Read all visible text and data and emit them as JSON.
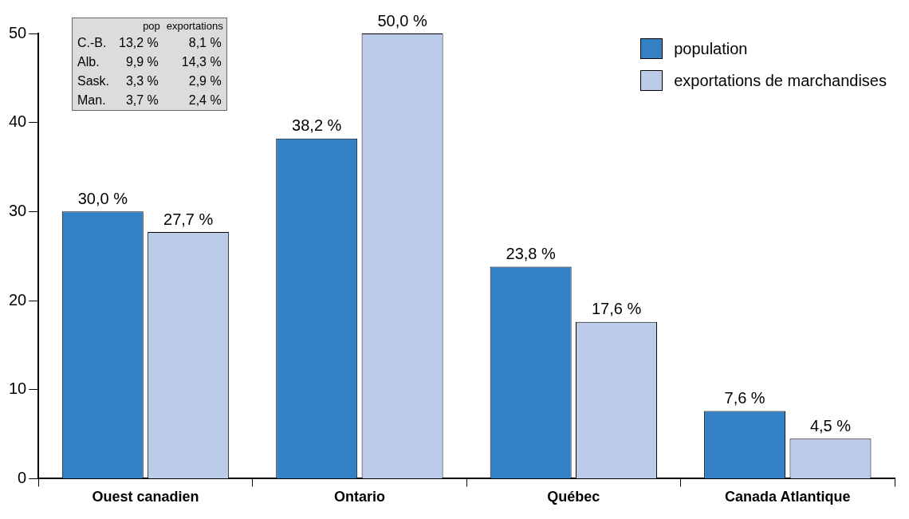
{
  "chart_data": {
    "type": "bar",
    "categories": [
      "Ouest canadien",
      "Ontario",
      "Québec",
      "Canada Atlantique"
    ],
    "series": [
      {
        "name": "population",
        "color": "#3380c4",
        "values": [
          30.0,
          38.2,
          23.8,
          7.6
        ],
        "value_labels": [
          "30,0 %",
          "38,2 %",
          "23,8 %",
          "7,6 %"
        ]
      },
      {
        "name": "exportations de marchandises",
        "color": "#bccbe8",
        "values": [
          27.7,
          50.0,
          17.6,
          4.5
        ],
        "value_labels": [
          "27,7 %",
          "50,0 %",
          "17,6 %",
          "4,5 %"
        ]
      }
    ],
    "ylim": [
      0,
      50
    ],
    "yticks": [
      0,
      10,
      20,
      30,
      40,
      50
    ],
    "grid": false,
    "legend": "top right",
    "annotations": [
      "pop",
      "exportations",
      "C.-B.",
      "13,2 %",
      "8,1 %",
      "Alb.",
      "9,9 %",
      "14,3 %",
      "Sask.",
      "3,3 %",
      "2,9 %",
      "Man.",
      "3,7 %",
      "2,4 %"
    ]
  }
}
